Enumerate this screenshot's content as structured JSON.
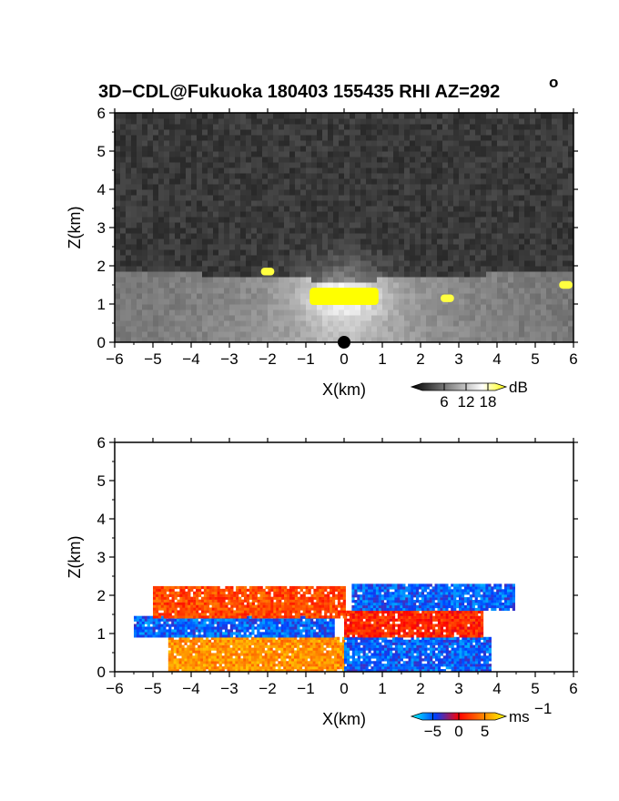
{
  "title": "3D−CDL@Fukuoka 180403 155435 RHI AZ=292",
  "title_degree": "o",
  "chart_data": [
    {
      "type": "heatmap",
      "variable": "backscatter",
      "xlabel": "X(km)",
      "ylabel": "Z(km)",
      "xlim": [
        -6,
        6
      ],
      "ylim": [
        0,
        6
      ],
      "xticks": [
        -6,
        -5,
        -4,
        -3,
        -2,
        -1,
        0,
        1,
        2,
        3,
        4,
        5,
        6
      ],
      "yticks": [
        0,
        1,
        2,
        3,
        4,
        5,
        6
      ],
      "colorbar": {
        "unit": "dB",
        "ticks": [
          6,
          12,
          18
        ],
        "range": [
          0,
          20
        ],
        "colors": [
          "#000000",
          "#555555",
          "#aaaaaa",
          "#ffffff",
          "#ffff00"
        ]
      },
      "features": [
        {
          "desc": "bright core",
          "x": 0,
          "z": 1.2,
          "value_db": 18
        },
        {
          "desc": "yellow patch",
          "x": -2.0,
          "z": 1.85,
          "value_db": 19
        },
        {
          "desc": "yellow patch",
          "x": 2.7,
          "z": 1.15,
          "value_db": 19
        },
        {
          "desc": "yellow patch",
          "x": 5.8,
          "z": 1.5,
          "value_db": 19
        }
      ]
    },
    {
      "type": "heatmap",
      "variable": "radial_velocity",
      "xlabel": "X(km)",
      "ylabel": "Z(km)",
      "xlim": [
        -6,
        6
      ],
      "ylim": [
        0,
        6
      ],
      "xticks": [
        -6,
        -5,
        -4,
        -3,
        -2,
        -1,
        0,
        1,
        2,
        3,
        4,
        5,
        6
      ],
      "yticks": [
        0,
        1,
        2,
        3,
        4,
        5,
        6
      ],
      "colorbar": {
        "unit": "ms",
        "unit_exp": "−1",
        "ticks": [
          -5,
          0,
          5
        ],
        "range": [
          -7,
          7
        ],
        "colors": [
          "#00ffff",
          "#0040ff",
          "#ff0000",
          "#ff8000",
          "#ffff00"
        ]
      },
      "layers": [
        {
          "desc": "lower outflow west",
          "x": [
            -4.6,
            0
          ],
          "z": [
            0,
            0.9
          ],
          "velocity": 4
        },
        {
          "desc": "lower inflow east",
          "x": [
            0,
            3.8
          ],
          "z": [
            0,
            0.9
          ],
          "velocity": -4
        },
        {
          "desc": "mid layer west",
          "x": [
            -5.5,
            -0.3
          ],
          "z": [
            0.9,
            1.4
          ],
          "velocity": -4
        },
        {
          "desc": "mid layer east",
          "x": [
            0,
            3.6
          ],
          "z": [
            0.9,
            1.6
          ],
          "velocity": 1
        },
        {
          "desc": "upper layer west",
          "x": [
            -5,
            0
          ],
          "z": [
            1.4,
            2.2
          ],
          "velocity": 2
        },
        {
          "desc": "upper layer east",
          "x": [
            0.2,
            4.4
          ],
          "z": [
            1.6,
            2.3
          ],
          "velocity": -4
        }
      ]
    }
  ]
}
